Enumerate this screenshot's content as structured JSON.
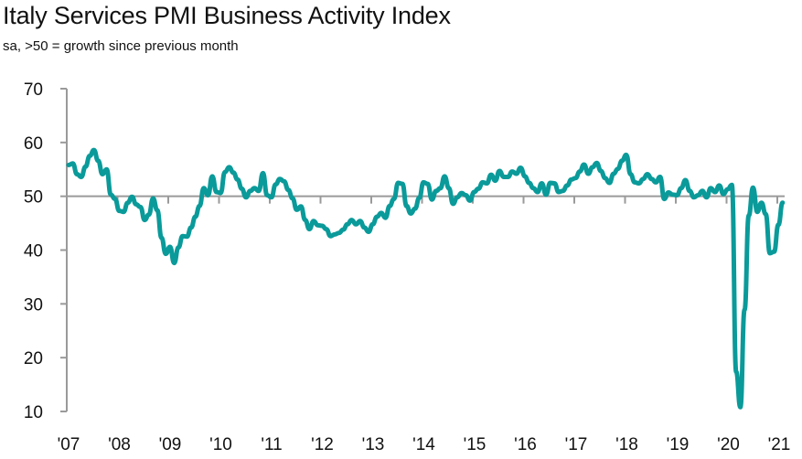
{
  "header": {
    "title": "Italy Services PMI Business Activity Index",
    "subtitle": "sa, >50 = growth since previous month"
  },
  "colors": {
    "series": "#0a9a9a",
    "axis": "#9a9a9a",
    "text": "#111111"
  },
  "chart_data": {
    "type": "line",
    "title": "Italy Services PMI Business Activity Index",
    "subtitle": "sa, >50 = growth since previous month",
    "xlabel": "",
    "ylabel": "",
    "ylim": [
      10,
      70
    ],
    "yticks": [
      10,
      20,
      30,
      40,
      50,
      60,
      70
    ],
    "ytick_labels": [
      "10",
      "20",
      "30",
      "40",
      "50",
      "60",
      "70"
    ],
    "xtick_labels": [
      "'07",
      "'08",
      "'09",
      "'10",
      "'11",
      "'12",
      "'13",
      "'14",
      "'15",
      "'16",
      "'17",
      "'18",
      "'19",
      "'20",
      "'21"
    ],
    "x_start": "2007-01",
    "x_end": "2021-02",
    "frequency": "monthly",
    "reference_line": 50,
    "grid": false,
    "legend": "none",
    "series": [
      {
        "name": "Italy Services PMI Business Activity Index",
        "values": [
          55.8,
          56.1,
          54.1,
          53.6,
          55.5,
          57.5,
          58.6,
          56.6,
          54.1,
          55.0,
          50.3,
          49.5,
          47.3,
          47.1,
          48.8,
          49.9,
          48.5,
          48.0,
          45.6,
          46.6,
          49.6,
          47.4,
          42.3,
          39.3,
          40.6,
          37.6,
          40.5,
          42.6,
          42.5,
          44.2,
          46.2,
          48.2,
          51.5,
          50.2,
          53.7,
          50.8,
          50.6,
          54.5,
          55.4,
          54.4,
          53.1,
          51.4,
          49.8,
          51.0,
          51.5,
          51.0,
          54.3,
          50.2,
          49.8,
          52.2,
          53.2,
          52.8,
          51.2,
          49.6,
          47.5,
          48.1,
          45.6,
          43.9,
          45.4,
          44.6,
          44.5,
          43.9,
          42.6,
          42.9,
          43.2,
          43.8,
          44.8,
          45.6,
          44.8,
          45.4,
          44.2,
          43.4,
          44.8,
          46.2,
          46.9,
          46.0,
          48.2,
          49.5,
          52.5,
          52.3,
          48.2,
          46.8,
          47.7,
          49.7,
          52.6,
          52.3,
          49.4,
          51.0,
          51.5,
          53.7,
          51.5,
          48.6,
          49.8,
          50.6,
          50.2,
          49.2,
          50.8,
          51.4,
          52.6,
          52.4,
          54.0,
          52.9,
          54.7,
          53.6,
          53.6,
          54.6,
          54.2,
          55.3,
          53.7,
          52.5,
          51.5,
          50.8,
          52.4,
          50.3,
          52.5,
          52.4,
          50.8,
          51.0,
          52.0,
          53.1,
          53.4,
          54.6,
          55.9,
          54.2,
          55.4,
          56.2,
          54.7,
          53.4,
          52.5,
          54.2,
          55.1,
          56.6,
          57.7,
          54.1,
          52.6,
          52.4,
          53.2,
          54.1,
          53.2,
          52.6,
          53.6,
          49.5,
          50.7,
          50.3,
          50.2,
          51.5,
          53.0,
          51.0,
          49.8,
          50.2,
          51.0,
          49.8,
          51.5,
          50.8,
          52.0,
          50.4,
          51.3,
          52.1,
          17.4,
          10.8,
          28.9,
          46.4,
          51.6,
          47.1,
          48.8,
          46.7,
          39.4,
          39.7,
          44.7,
          48.8
        ]
      }
    ]
  }
}
